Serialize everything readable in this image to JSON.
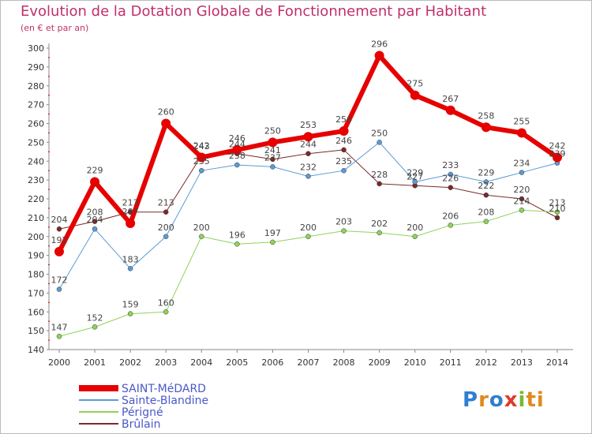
{
  "title": "Evolution de la Dotation Globale de Fonctionnement par Habitant",
  "subtitle": "(en € et par an)",
  "logo": {
    "text": "Proxiti",
    "letters": [
      "P",
      "r",
      "o",
      "x",
      "i",
      "ti"
    ]
  },
  "chart_data": {
    "type": "line",
    "title": "Evolution de la Dotation Globale de Fonctionnement par Habitant",
    "subtitle": "(en € et par an)",
    "xlabel": "",
    "ylabel": "",
    "ylim": [
      140,
      300
    ],
    "ytick_step": 10,
    "grid": false,
    "legend_position": "bottom-left",
    "x": [
      "2000",
      "2001",
      "2002",
      "2003",
      "2004",
      "2005",
      "2006",
      "2007",
      "2008",
      "2009",
      "2010",
      "2011",
      "2012",
      "2013",
      "2014"
    ],
    "series": [
      {
        "name": "SAINT-MéDARD",
        "color": "#e60000",
        "width": 6,
        "values": [
          192,
          229,
          207,
          260,
          242,
          246,
          250,
          253,
          256,
          296,
          275,
          267,
          258,
          255,
          242
        ],
        "labels": [
          "192",
          "229",
          "207",
          "260",
          "242",
          "246",
          "250",
          "253",
          "256",
          "296",
          "275",
          "267",
          "258",
          "255",
          "242"
        ]
      },
      {
        "name": "Sainte-Blandine",
        "color": "#5b9bd5",
        "width": 1,
        "values": [
          172,
          204,
          183,
          200,
          235,
          238,
          237,
          232,
          235,
          250,
          229,
          233,
          229,
          234,
          239
        ],
        "labels": [
          "172",
          "204",
          "183",
          "200",
          "235",
          "238",
          "237",
          "232",
          "235",
          "250",
          "229",
          "233",
          "229",
          "234",
          "239"
        ]
      },
      {
        "name": "Périgné",
        "color": "#8fd35a",
        "width": 1,
        "values": [
          147,
          152,
          159,
          160,
          200,
          196,
          197,
          200,
          203,
          202,
          200,
          206,
          208,
          214,
          213
        ],
        "labels": [
          "147",
          "152",
          "159",
          "160",
          "200",
          "196",
          "197",
          "200",
          "203",
          "202",
          "200",
          "206",
          "208",
          "214",
          "213"
        ]
      },
      {
        "name": "Brûlain",
        "color": "#7a2a2a",
        "width": 1,
        "values": [
          204,
          208,
          213,
          213,
          243,
          244,
          241,
          244,
          246,
          228,
          227,
          226,
          222,
          220,
          210
        ],
        "labels": [
          "204",
          "208",
          "213",
          "213",
          "243",
          "244",
          "241",
          "244",
          "246",
          "228",
          "227",
          "226",
          "222",
          "220",
          "210"
        ]
      }
    ]
  }
}
